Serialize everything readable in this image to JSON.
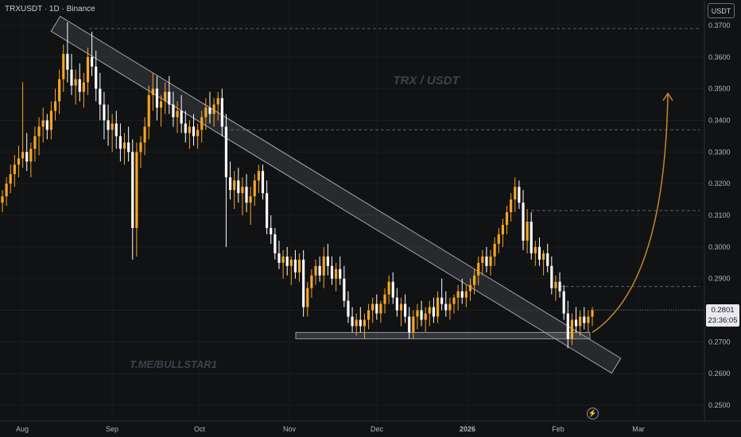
{
  "header": {
    "symbol_title": "TRXUSDT · 1D · Binance",
    "currency": "USDT"
  },
  "watermarks": {
    "pair": "TRX / USDT",
    "channel": "T.ME/BULLSTAR1"
  },
  "last_price": {
    "value": "0.2801",
    "countdown": "23:36:05"
  },
  "icons": {
    "bolt": "lightning-bolt-icon"
  },
  "colors": {
    "up": "#f5a623",
    "down": "#ffffff",
    "grid": "#2a2e39",
    "arrow": "#c08a2e"
  },
  "chart_data": {
    "type": "candlestick",
    "y_axis": {
      "min": 0.245,
      "max": 0.375,
      "ticks": [
        "0.2500",
        "0.2600",
        "0.2700",
        "0.2800",
        "0.2900",
        "0.3000",
        "0.3100",
        "0.3200",
        "0.3300",
        "0.3400",
        "0.3500",
        "0.3600",
        "0.3700"
      ]
    },
    "x_axis": {
      "ticks": [
        "Aug",
        "Sep",
        "Oct",
        "Nov",
        "Dec",
        "2026",
        "Feb",
        "Mar"
      ]
    },
    "candles": [
      [
        0.314,
        0.318,
        0.311,
        0.316
      ],
      [
        0.316,
        0.322,
        0.313,
        0.32
      ],
      [
        0.32,
        0.326,
        0.317,
        0.323
      ],
      [
        0.323,
        0.329,
        0.319,
        0.326
      ],
      [
        0.326,
        0.332,
        0.322,
        0.328
      ],
      [
        0.328,
        0.352,
        0.325,
        0.33
      ],
      [
        0.33,
        0.336,
        0.324,
        0.327
      ],
      [
        0.327,
        0.333,
        0.322,
        0.331
      ],
      [
        0.331,
        0.338,
        0.327,
        0.335
      ],
      [
        0.335,
        0.341,
        0.329,
        0.338
      ],
      [
        0.338,
        0.344,
        0.333,
        0.34
      ],
      [
        0.34,
        0.342,
        0.334,
        0.337
      ],
      [
        0.337,
        0.346,
        0.334,
        0.343
      ],
      [
        0.343,
        0.35,
        0.34,
        0.346
      ],
      [
        0.346,
        0.356,
        0.342,
        0.353
      ],
      [
        0.353,
        0.364,
        0.349,
        0.361
      ],
      [
        0.361,
        0.371,
        0.352,
        0.356
      ],
      [
        0.356,
        0.361,
        0.348,
        0.351
      ],
      [
        0.351,
        0.356,
        0.345,
        0.353
      ],
      [
        0.353,
        0.358,
        0.346,
        0.349
      ],
      [
        0.349,
        0.355,
        0.344,
        0.352
      ],
      [
        0.352,
        0.363,
        0.348,
        0.36
      ],
      [
        0.36,
        0.368,
        0.354,
        0.357
      ],
      [
        0.357,
        0.362,
        0.346,
        0.35
      ],
      [
        0.35,
        0.355,
        0.34,
        0.345
      ],
      [
        0.345,
        0.349,
        0.334,
        0.34
      ],
      [
        0.34,
        0.345,
        0.332,
        0.337
      ],
      [
        0.337,
        0.342,
        0.33,
        0.339
      ],
      [
        0.339,
        0.343,
        0.331,
        0.335
      ],
      [
        0.335,
        0.339,
        0.327,
        0.331
      ],
      [
        0.331,
        0.336,
        0.326,
        0.333
      ],
      [
        0.333,
        0.338,
        0.327,
        0.33
      ],
      [
        0.33,
        0.334,
        0.296,
        0.306
      ],
      [
        0.306,
        0.333,
        0.297,
        0.33
      ],
      [
        0.33,
        0.335,
        0.325,
        0.333
      ],
      [
        0.333,
        0.341,
        0.329,
        0.338
      ],
      [
        0.338,
        0.351,
        0.334,
        0.348
      ],
      [
        0.348,
        0.355,
        0.343,
        0.35
      ],
      [
        0.35,
        0.354,
        0.34,
        0.344
      ],
      [
        0.344,
        0.348,
        0.338,
        0.346
      ],
      [
        0.346,
        0.352,
        0.342,
        0.349
      ],
      [
        0.349,
        0.354,
        0.342,
        0.345
      ],
      [
        0.345,
        0.349,
        0.338,
        0.341
      ],
      [
        0.341,
        0.346,
        0.336,
        0.343
      ],
      [
        0.343,
        0.348,
        0.336,
        0.339
      ],
      [
        0.339,
        0.343,
        0.333,
        0.336
      ],
      [
        0.336,
        0.34,
        0.331,
        0.338
      ],
      [
        0.338,
        0.342,
        0.332,
        0.335
      ],
      [
        0.335,
        0.339,
        0.331,
        0.337
      ],
      [
        0.337,
        0.343,
        0.333,
        0.341
      ],
      [
        0.341,
        0.347,
        0.337,
        0.344
      ],
      [
        0.344,
        0.349,
        0.339,
        0.342
      ],
      [
        0.342,
        0.347,
        0.338,
        0.345
      ],
      [
        0.345,
        0.349,
        0.34,
        0.347
      ],
      [
        0.347,
        0.35,
        0.335,
        0.338
      ],
      [
        0.338,
        0.342,
        0.3,
        0.322
      ],
      [
        0.322,
        0.327,
        0.315,
        0.318
      ],
      [
        0.318,
        0.324,
        0.312,
        0.321
      ],
      [
        0.321,
        0.325,
        0.314,
        0.317
      ],
      [
        0.317,
        0.322,
        0.31,
        0.319
      ],
      [
        0.319,
        0.323,
        0.311,
        0.314
      ],
      [
        0.314,
        0.319,
        0.307,
        0.316
      ],
      [
        0.316,
        0.323,
        0.313,
        0.321
      ],
      [
        0.321,
        0.326,
        0.317,
        0.324
      ],
      [
        0.324,
        0.326,
        0.315,
        0.317
      ],
      [
        0.317,
        0.321,
        0.304,
        0.306
      ],
      [
        0.306,
        0.31,
        0.301,
        0.304
      ],
      [
        0.304,
        0.306,
        0.296,
        0.298
      ],
      [
        0.298,
        0.302,
        0.293,
        0.295
      ],
      [
        0.295,
        0.299,
        0.29,
        0.297
      ],
      [
        0.297,
        0.3,
        0.291,
        0.294
      ],
      [
        0.294,
        0.297,
        0.288,
        0.296
      ],
      [
        0.296,
        0.299,
        0.29,
        0.292
      ],
      [
        0.292,
        0.298,
        0.289,
        0.296
      ],
      [
        0.296,
        0.299,
        0.278,
        0.281
      ],
      [
        0.281,
        0.289,
        0.278,
        0.287
      ],
      [
        0.287,
        0.293,
        0.284,
        0.291
      ],
      [
        0.291,
        0.296,
        0.288,
        0.294
      ],
      [
        0.294,
        0.297,
        0.289,
        0.291
      ],
      [
        0.291,
        0.3,
        0.287,
        0.297
      ],
      [
        0.297,
        0.301,
        0.291,
        0.294
      ],
      [
        0.294,
        0.297,
        0.288,
        0.29
      ],
      [
        0.29,
        0.295,
        0.286,
        0.293
      ],
      [
        0.293,
        0.297,
        0.288,
        0.29
      ],
      [
        0.29,
        0.294,
        0.281,
        0.283
      ],
      [
        0.283,
        0.286,
        0.276,
        0.278
      ],
      [
        0.278,
        0.281,
        0.273,
        0.275
      ],
      [
        0.275,
        0.279,
        0.272,
        0.277
      ],
      [
        0.277,
        0.281,
        0.273,
        0.275
      ],
      [
        0.275,
        0.279,
        0.271,
        0.277
      ],
      [
        0.277,
        0.282,
        0.274,
        0.28
      ],
      [
        0.28,
        0.284,
        0.276,
        0.282
      ],
      [
        0.282,
        0.285,
        0.277,
        0.279
      ],
      [
        0.279,
        0.283,
        0.276,
        0.282
      ],
      [
        0.282,
        0.287,
        0.279,
        0.285
      ],
      [
        0.285,
        0.291,
        0.282,
        0.289
      ],
      [
        0.289,
        0.292,
        0.282,
        0.284
      ],
      [
        0.284,
        0.287,
        0.278,
        0.28
      ],
      [
        0.28,
        0.284,
        0.275,
        0.282
      ],
      [
        0.282,
        0.285,
        0.276,
        0.278
      ],
      [
        0.278,
        0.281,
        0.271,
        0.273
      ],
      [
        0.273,
        0.28,
        0.271,
        0.278
      ],
      [
        0.278,
        0.282,
        0.274,
        0.28
      ],
      [
        0.28,
        0.283,
        0.275,
        0.277
      ],
      [
        0.277,
        0.281,
        0.273,
        0.279
      ],
      [
        0.279,
        0.283,
        0.275,
        0.281
      ],
      [
        0.281,
        0.284,
        0.276,
        0.278
      ],
      [
        0.278,
        0.286,
        0.276,
        0.284
      ],
      [
        0.284,
        0.29,
        0.28,
        0.282
      ],
      [
        0.282,
        0.286,
        0.278,
        0.28
      ],
      [
        0.28,
        0.284,
        0.277,
        0.282
      ],
      [
        0.282,
        0.285,
        0.279,
        0.284
      ],
      [
        0.284,
        0.288,
        0.28,
        0.286
      ],
      [
        0.286,
        0.29,
        0.282,
        0.284
      ],
      [
        0.284,
        0.288,
        0.281,
        0.286
      ],
      [
        0.286,
        0.29,
        0.283,
        0.288
      ],
      [
        0.288,
        0.293,
        0.285,
        0.291
      ],
      [
        0.291,
        0.297,
        0.288,
        0.295
      ],
      [
        0.295,
        0.299,
        0.291,
        0.297
      ],
      [
        0.297,
        0.3,
        0.292,
        0.294
      ],
      [
        0.294,
        0.299,
        0.291,
        0.297
      ],
      [
        0.297,
        0.303,
        0.294,
        0.301
      ],
      [
        0.301,
        0.306,
        0.298,
        0.304
      ],
      [
        0.304,
        0.309,
        0.3,
        0.307
      ],
      [
        0.307,
        0.313,
        0.304,
        0.311
      ],
      [
        0.311,
        0.317,
        0.308,
        0.315
      ],
      [
        0.315,
        0.322,
        0.311,
        0.319
      ],
      [
        0.319,
        0.321,
        0.312,
        0.314
      ],
      [
        0.314,
        0.318,
        0.299,
        0.302
      ],
      [
        0.302,
        0.312,
        0.298,
        0.308
      ],
      [
        0.308,
        0.311,
        0.296,
        0.298
      ],
      [
        0.298,
        0.302,
        0.294,
        0.3
      ],
      [
        0.3,
        0.303,
        0.294,
        0.296
      ],
      [
        0.296,
        0.299,
        0.291,
        0.298
      ],
      [
        0.298,
        0.301,
        0.292,
        0.294
      ],
      [
        0.294,
        0.297,
        0.285,
        0.287
      ],
      [
        0.287,
        0.291,
        0.283,
        0.289
      ],
      [
        0.289,
        0.292,
        0.284,
        0.286
      ],
      [
        0.286,
        0.288,
        0.277,
        0.279
      ],
      [
        0.279,
        0.283,
        0.268,
        0.271
      ],
      [
        0.271,
        0.279,
        0.269,
        0.277
      ],
      [
        0.277,
        0.281,
        0.273,
        0.275
      ],
      [
        0.275,
        0.28,
        0.272,
        0.278
      ],
      [
        0.278,
        0.281,
        0.274,
        0.276
      ],
      [
        0.276,
        0.28,
        0.273,
        0.278
      ],
      [
        0.278,
        0.281,
        0.275,
        0.2801
      ]
    ],
    "levels": [
      {
        "price": 0.369,
        "style": "dashed"
      },
      {
        "price": 0.337,
        "style": "dashed"
      },
      {
        "price": 0.3115,
        "style": "dashed"
      },
      {
        "price": 0.2875,
        "style": "dashed"
      }
    ],
    "support_box": {
      "x_from": 372,
      "x_to": 742,
      "price_top": 0.273,
      "price_bottom": 0.2713
    },
    "trend_channel": {
      "from": [
        70,
        0.3705
      ],
      "to": [
        775,
        0.2625
      ],
      "half_width": 11
    },
    "projection_arrow": {
      "from": [
        745,
        0.273
      ],
      "to": [
        840,
        0.3485
      ]
    }
  }
}
